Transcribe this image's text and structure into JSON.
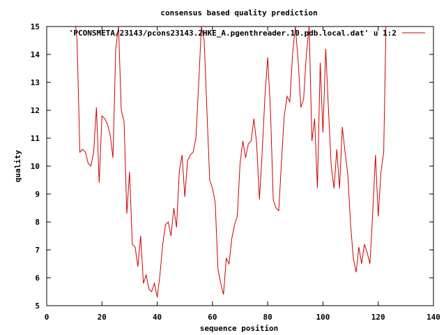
{
  "chart_data": {
    "type": "line",
    "title": "consensus based quality prediction",
    "xlabel": "sequence position",
    "ylabel": "quality",
    "xlim": [
      0,
      140
    ],
    "ylim": [
      5,
      15
    ],
    "xticks": [
      0,
      20,
      40,
      60,
      80,
      100,
      120,
      140
    ],
    "yticks": [
      5,
      6,
      7,
      8,
      9,
      10,
      11,
      12,
      13,
      14,
      15
    ],
    "legend_position": "top-right",
    "series": [
      {
        "name": "'PCONSMETA/23143/pcons23143.2HKE_A.pgenthreader.10.pdb.local.dat' u 1:2",
        "color": "#cc0000",
        "x": [
          10.5,
          11,
          12,
          13,
          14,
          15,
          16,
          17,
          18,
          19,
          20,
          21,
          22,
          23,
          24,
          25,
          26,
          27,
          28,
          29,
          30,
          31,
          32,
          33,
          34,
          35,
          36,
          37,
          38,
          39,
          40,
          41,
          42,
          43,
          44,
          45,
          46,
          47,
          48,
          49,
          50,
          51,
          52,
          53,
          54,
          55,
          56,
          57,
          58,
          59,
          60,
          61,
          62,
          63,
          64,
          65,
          66,
          67,
          68,
          69,
          70,
          71,
          72,
          73,
          74,
          75,
          76,
          77,
          78,
          79,
          80,
          81,
          82,
          83,
          84,
          85,
          86,
          87,
          88,
          89,
          90,
          91,
          92,
          93,
          94,
          95,
          96,
          97,
          98,
          99,
          100,
          101,
          102,
          103,
          104,
          105,
          106,
          107,
          108,
          109,
          110,
          111,
          112,
          113,
          114,
          115,
          116,
          117,
          118,
          119,
          120,
          121,
          122,
          122.8
        ],
        "y": [
          15.0,
          14.5,
          10.5,
          10.6,
          10.5,
          10.1,
          10.0,
          10.5,
          12.1,
          9.4,
          11.8,
          11.7,
          11.5,
          11.1,
          10.3,
          14.2,
          15.0,
          12.0,
          11.6,
          8.3,
          9.8,
          7.2,
          7.1,
          6.4,
          7.5,
          5.8,
          6.1,
          5.6,
          5.5,
          5.8,
          5.3,
          6.1,
          7.2,
          7.9,
          8.0,
          7.5,
          8.5,
          7.8,
          9.8,
          10.4,
          8.9,
          10.2,
          10.4,
          10.5,
          11.0,
          12.9,
          15.0,
          14.5,
          12.0,
          9.5,
          9.2,
          8.7,
          6.3,
          5.8,
          5.4,
          6.7,
          6.5,
          7.4,
          7.9,
          8.2,
          10.1,
          10.9,
          10.3,
          10.8,
          10.9,
          11.7,
          10.8,
          8.8,
          10.5,
          12.5,
          13.9,
          12.0,
          8.8,
          8.5,
          8.4,
          10.2,
          11.8,
          12.5,
          12.3,
          14.0,
          15.0,
          13.8,
          12.1,
          12.4,
          14.0,
          15.0,
          10.9,
          11.7,
          9.2,
          13.7,
          11.2,
          14.2,
          12.0,
          10.0,
          9.2,
          10.6,
          9.2,
          11.4,
          10.5,
          9.7,
          7.9,
          6.7,
          6.2,
          7.1,
          6.5,
          7.2,
          6.9,
          6.5,
          8.3,
          10.4,
          8.2,
          9.8,
          10.5,
          15.0
        ]
      }
    ]
  }
}
